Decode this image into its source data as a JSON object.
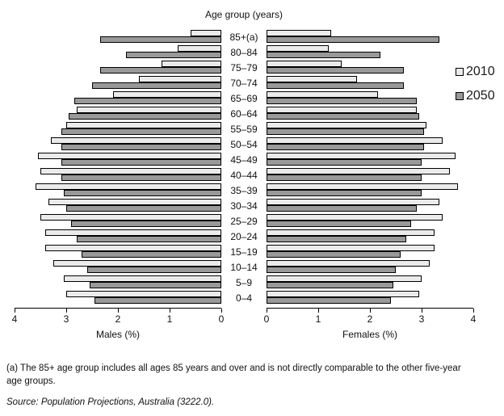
{
  "title": "Age group (years)",
  "legend": {
    "items": [
      {
        "label": "2010",
        "color": "#ebebeb"
      },
      {
        "label": "2050",
        "color": "#999999"
      }
    ]
  },
  "axes": {
    "males": {
      "label": "Males (%)",
      "ticks": [
        "4",
        "3",
        "2",
        "1",
        "0"
      ],
      "min": 0,
      "max": 4
    },
    "females": {
      "label": "Females (%)",
      "ticks": [
        "0",
        "1",
        "2",
        "3",
        "4"
      ],
      "min": 0,
      "max": 4
    }
  },
  "footnote": "(a) The 85+ age group includes all ages 85 years and over and is not directly comparable to the other five-year age groups.",
  "source": "Source: Population Projections, Australia (3222.0).",
  "chart_data": {
    "type": "bar",
    "subtype": "population-pyramid",
    "title": "Age group (years)",
    "categories": [
      "85+(a)",
      "80–84",
      "75–79",
      "70–74",
      "65–69",
      "60–64",
      "55–59",
      "50–54",
      "45–49",
      "40–44",
      "35–39",
      "30–34",
      "25–29",
      "20–24",
      "15–19",
      "10–14",
      "5–9",
      "0–4"
    ],
    "series": [
      {
        "name": "Males 2010",
        "side": "left",
        "year": "2010",
        "values": [
          0.6,
          0.85,
          1.15,
          1.6,
          2.1,
          2.8,
          3.0,
          3.3,
          3.55,
          3.5,
          3.6,
          3.35,
          3.5,
          3.4,
          3.4,
          3.25,
          3.05,
          3.0
        ]
      },
      {
        "name": "Males 2050",
        "side": "left",
        "year": "2050",
        "values": [
          2.35,
          1.85,
          2.35,
          2.5,
          2.85,
          2.95,
          3.1,
          3.1,
          3.1,
          3.1,
          3.05,
          3.0,
          2.9,
          2.8,
          2.7,
          2.6,
          2.55,
          2.45
        ]
      },
      {
        "name": "Females 2010",
        "side": "right",
        "year": "2010",
        "values": [
          1.25,
          1.2,
          1.45,
          1.75,
          2.15,
          2.9,
          3.1,
          3.4,
          3.65,
          3.55,
          3.7,
          3.35,
          3.4,
          3.25,
          3.25,
          3.15,
          3.0,
          2.95
        ]
      },
      {
        "name": "Females 2050",
        "side": "right",
        "year": "2050",
        "values": [
          3.35,
          2.2,
          2.65,
          2.65,
          2.9,
          2.95,
          3.05,
          3.05,
          3.0,
          3.0,
          3.0,
          2.9,
          2.8,
          2.7,
          2.6,
          2.5,
          2.45,
          2.4
        ]
      }
    ],
    "xlabel_left": "Males (%)",
    "xlabel_right": "Females (%)",
    "xlim": [
      0,
      4
    ],
    "grid": false,
    "legend_position": "right",
    "colors": {
      "2010": "#ebebeb",
      "2050": "#999999"
    }
  }
}
